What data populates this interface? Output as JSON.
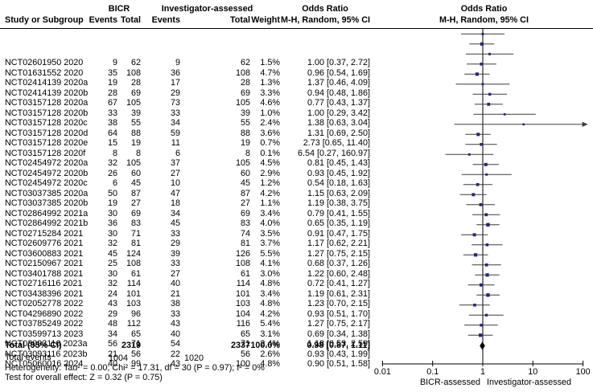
{
  "header": {
    "study": "Study or Subgroup",
    "bicr_group": "BICR",
    "investigator_group": "Investigator-assessed",
    "odds_ratio_group": "Odds Ratio",
    "events": "Events",
    "total": "Total",
    "weight": "Weight",
    "mh_random": "M-H, Random, 95% CI"
  },
  "plot": {
    "title_line1": "Odds Ratio",
    "title_line2": "M-H, Random, 95% CI",
    "xlabel_left": "BICR-assessed",
    "xlabel_right": "Investigator-assessed"
  },
  "footer": {
    "heterogeneity": "Heterogeneity: Tau² = 0.00; Chi² = 17.31, df = 30 (P = 0.97); I² = 0%",
    "overall_effect": "Test for overall effect: Z = 0.32 (P = 0.75)"
  },
  "colors": {
    "square": "#26267E",
    "ci_line": "#3d3d3d",
    "axis": "#000000",
    "diamond": "#000000"
  },
  "chart_data": {
    "type": "forest",
    "x_scale": "log",
    "x_range": [
      0.01,
      100
    ],
    "x_ticks": [
      0.01,
      0.1,
      1,
      10,
      100
    ],
    "effect_measure": "Odds Ratio, M-H, Random, 95% CI",
    "studies": [
      {
        "name": "NCT02601950 2020",
        "bicr_events": 9,
        "bicr_total": 62,
        "inv_events": 9,
        "inv_total": 62,
        "weight": 1.5,
        "or": 1.0,
        "ci_low": 0.37,
        "ci_high": 2.72
      },
      {
        "name": "NCT01631552 2020",
        "bicr_events": 35,
        "bicr_total": 108,
        "inv_events": 36,
        "inv_total": 108,
        "weight": 4.7,
        "or": 0.96,
        "ci_low": 0.54,
        "ci_high": 1.69
      },
      {
        "name": "NCT02414139 2020a",
        "bicr_events": 19,
        "bicr_total": 28,
        "inv_events": 17,
        "inv_total": 28,
        "weight": 1.3,
        "or": 1.37,
        "ci_low": 0.46,
        "ci_high": 4.09
      },
      {
        "name": "NCT02414139 2020b",
        "bicr_events": 28,
        "bicr_total": 69,
        "inv_events": 29,
        "inv_total": 69,
        "weight": 3.3,
        "or": 0.94,
        "ci_low": 0.48,
        "ci_high": 1.86
      },
      {
        "name": "NCT03157128 2020a",
        "bicr_events": 67,
        "bicr_total": 105,
        "inv_events": 73,
        "inv_total": 105,
        "weight": 4.6,
        "or": 0.77,
        "ci_low": 0.43,
        "ci_high": 1.37
      },
      {
        "name": "NCT03157128 2020b",
        "bicr_events": 33,
        "bicr_total": 39,
        "inv_events": 33,
        "inv_total": 39,
        "weight": 1.0,
        "or": 1.0,
        "ci_low": 0.29,
        "ci_high": 3.42
      },
      {
        "name": "NCT03157128 2020c",
        "bicr_events": 38,
        "bicr_total": 55,
        "inv_events": 34,
        "inv_total": 55,
        "weight": 2.4,
        "or": 1.38,
        "ci_low": 0.63,
        "ci_high": 3.04
      },
      {
        "name": "NCT03157128 2020d",
        "bicr_events": 64,
        "bicr_total": 88,
        "inv_events": 59,
        "inv_total": 88,
        "weight": 3.6,
        "or": 1.31,
        "ci_low": 0.69,
        "ci_high": 2.5
      },
      {
        "name": "NCT03157128 2020e",
        "bicr_events": 15,
        "bicr_total": 19,
        "inv_events": 11,
        "inv_total": 19,
        "weight": 0.7,
        "or": 2.73,
        "ci_low": 0.65,
        "ci_high": 11.4
      },
      {
        "name": "NCT03157128 2020f",
        "bicr_events": 8,
        "bicr_total": 8,
        "inv_events": 6,
        "inv_total": 8,
        "weight": 0.1,
        "or": 6.54,
        "ci_low": 0.27,
        "ci_high": 160.97
      },
      {
        "name": "NCT02454972 2020a",
        "bicr_events": 32,
        "bicr_total": 105,
        "inv_events": 37,
        "inv_total": 105,
        "weight": 4.5,
        "or": 0.81,
        "ci_low": 0.45,
        "ci_high": 1.43
      },
      {
        "name": "NCT02454972 2020b",
        "bicr_events": 26,
        "bicr_total": 60,
        "inv_events": 27,
        "inv_total": 60,
        "weight": 2.9,
        "or": 0.93,
        "ci_low": 0.45,
        "ci_high": 1.92
      },
      {
        "name": "NCT02454972 2020c",
        "bicr_events": 6,
        "bicr_total": 45,
        "inv_events": 10,
        "inv_total": 45,
        "weight": 1.2,
        "or": 0.54,
        "ci_low": 0.18,
        "ci_high": 1.63
      },
      {
        "name": "NCT03037385 2020a",
        "bicr_events": 50,
        "bicr_total": 87,
        "inv_events": 47,
        "inv_total": 87,
        "weight": 4.2,
        "or": 1.15,
        "ci_low": 0.63,
        "ci_high": 2.09
      },
      {
        "name": "NCT03037385 2020b",
        "bicr_events": 19,
        "bicr_total": 27,
        "inv_events": 18,
        "inv_total": 27,
        "weight": 1.1,
        "or": 1.19,
        "ci_low": 0.38,
        "ci_high": 3.75
      },
      {
        "name": "NCT02864992 2021a",
        "bicr_events": 30,
        "bicr_total": 69,
        "inv_events": 34,
        "inv_total": 69,
        "weight": 3.4,
        "or": 0.79,
        "ci_low": 0.41,
        "ci_high": 1.55
      },
      {
        "name": "NCT02864992 2021b",
        "bicr_events": 36,
        "bicr_total": 83,
        "inv_events": 45,
        "inv_total": 83,
        "weight": 4.0,
        "or": 0.65,
        "ci_low": 0.35,
        "ci_high": 1.19
      },
      {
        "name": "NCT02715284 2021",
        "bicr_events": 30,
        "bicr_total": 71,
        "inv_events": 33,
        "inv_total": 74,
        "weight": 3.5,
        "or": 0.91,
        "ci_low": 0.47,
        "ci_high": 1.75
      },
      {
        "name": "NCT02609776 2021",
        "bicr_events": 32,
        "bicr_total": 81,
        "inv_events": 29,
        "inv_total": 81,
        "weight": 3.7,
        "or": 1.17,
        "ci_low": 0.62,
        "ci_high": 2.21
      },
      {
        "name": "NCT03600883 2021",
        "bicr_events": 45,
        "bicr_total": 124,
        "inv_events": 39,
        "inv_total": 126,
        "weight": 5.5,
        "or": 1.27,
        "ci_low": 0.75,
        "ci_high": 2.15
      },
      {
        "name": "NCT02150967 2021",
        "bicr_events": 25,
        "bicr_total": 108,
        "inv_events": 33,
        "inv_total": 108,
        "weight": 4.1,
        "or": 0.68,
        "ci_low": 0.37,
        "ci_high": 1.26
      },
      {
        "name": "NCT03401788 2021",
        "bicr_events": 30,
        "bicr_total": 61,
        "inv_events": 27,
        "inv_total": 61,
        "weight": 3.0,
        "or": 1.22,
        "ci_low": 0.6,
        "ci_high": 2.48
      },
      {
        "name": "NCT02716116 2021",
        "bicr_events": 32,
        "bicr_total": 114,
        "inv_events": 40,
        "inv_total": 114,
        "weight": 4.8,
        "or": 0.72,
        "ci_low": 0.41,
        "ci_high": 1.27
      },
      {
        "name": "NCT03438396 2021",
        "bicr_events": 24,
        "bicr_total": 101,
        "inv_events": 21,
        "inv_total": 101,
        "weight": 3.4,
        "or": 1.19,
        "ci_low": 0.61,
        "ci_high": 2.31
      },
      {
        "name": "NCT02052778 2022",
        "bicr_events": 43,
        "bicr_total": 103,
        "inv_events": 38,
        "inv_total": 103,
        "weight": 4.8,
        "or": 1.23,
        "ci_low": 0.7,
        "ci_high": 2.15
      },
      {
        "name": "NCT04296890 2022",
        "bicr_events": 29,
        "bicr_total": 96,
        "inv_events": 33,
        "inv_total": 104,
        "weight": 4.2,
        "or": 0.93,
        "ci_low": 0.51,
        "ci_high": 1.7
      },
      {
        "name": "NCT03785249 2022",
        "bicr_events": 48,
        "bicr_total": 112,
        "inv_events": 43,
        "inv_total": 116,
        "weight": 5.4,
        "or": 1.27,
        "ci_low": 0.75,
        "ci_high": 2.17
      },
      {
        "name": "NCT03599713 2023",
        "bicr_events": 34,
        "bicr_total": 65,
        "inv_events": 40,
        "inv_total": 65,
        "weight": 3.1,
        "or": 0.69,
        "ci_low": 0.34,
        "ci_high": 1.38
      },
      {
        "name": "NCT03093116 2023a",
        "bicr_events": 56,
        "bicr_total": 71,
        "inv_events": 54,
        "inv_total": 71,
        "weight": 2.4,
        "or": 1.18,
        "ci_low": 0.53,
        "ci_high": 2.59
      },
      {
        "name": "NCT03093116 2023b",
        "bicr_events": 21,
        "bicr_total": 56,
        "inv_events": 22,
        "inv_total": 56,
        "weight": 2.6,
        "or": 0.93,
        "ci_low": 0.43,
        "ci_high": 1.99
      },
      {
        "name": "NCT05060016 2024",
        "bicr_events": 40,
        "bicr_total": 99,
        "inv_events": 43,
        "inv_total": 100,
        "weight": 4.8,
        "or": 0.9,
        "ci_low": 0.51,
        "ci_high": 1.58
      }
    ],
    "total": {
      "label": "Total (95% CI)",
      "bicr_total": 2319,
      "inv_total": 2337,
      "weight": 100.0,
      "or": 0.98,
      "ci_low": 0.87,
      "ci_high": 1.11
    },
    "total_events": {
      "label": "Total events",
      "bicr": 1004,
      "inv": 1020
    }
  }
}
